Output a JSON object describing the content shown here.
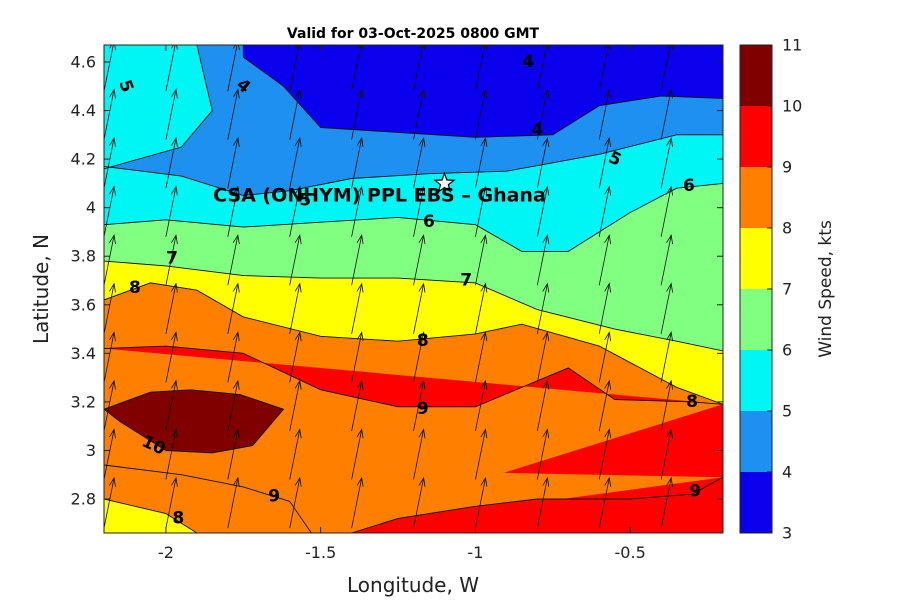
{
  "chart_data": {
    "type": "contour",
    "title": "Valid for 03-Oct-2025 0800 GMT",
    "xlabel": "Longitude, W",
    "ylabel": "Latitude, N",
    "xlim": [
      -2.2,
      -0.2
    ],
    "ylim": [
      2.66,
      4.67
    ],
    "x_ticks": [
      -2,
      -1.5,
      -1,
      -0.5
    ],
    "x_tick_labels": [
      "-2",
      "-1.5",
      "-1",
      "-0.5"
    ],
    "y_ticks": [
      2.8,
      3,
      3.2,
      3.4,
      3.6,
      3.8,
      4,
      4.2,
      4.4,
      4.6
    ],
    "y_tick_labels": [
      "2.8",
      "3",
      "3.2",
      "3.4",
      "3.6",
      "3.8",
      "4",
      "4.2",
      "4.4",
      "4.6"
    ],
    "variable": "Wind Speed, kts",
    "colorbar": {
      "label": "Wind Speed, kts",
      "levels": [
        3,
        4,
        5,
        6,
        7,
        8,
        9,
        10,
        11
      ],
      "tick_labels": [
        "3",
        "4",
        "5",
        "6",
        "7",
        "8",
        "9",
        "10",
        "11"
      ],
      "colors": [
        "#0a00ee",
        "#1e90f0",
        "#00f5f5",
        "#80ff80",
        "#ffff00",
        "#ff8000",
        "#ff0000",
        "#800000"
      ]
    },
    "contour_lines": [
      {
        "level": 4,
        "points": [
          [
            -1.75,
            4.67
          ],
          [
            -1.75,
            4.62
          ],
          [
            -1.62,
            4.5
          ],
          [
            -1.5,
            4.33
          ],
          [
            -1.25,
            4.31
          ],
          [
            -1.0,
            4.29
          ],
          [
            -0.75,
            4.3
          ],
          [
            -0.6,
            4.42
          ],
          [
            -0.4,
            4.46
          ],
          [
            -0.2,
            4.45
          ]
        ]
      },
      {
        "level": 5,
        "points": [
          [
            -2.2,
            4.16
          ],
          [
            -1.95,
            4.25
          ],
          [
            -1.85,
            4.4
          ],
          [
            -1.9,
            4.67
          ]
        ]
      },
      {
        "level": 5,
        "points": [
          [
            -2.2,
            4.17
          ],
          [
            -1.95,
            4.13
          ],
          [
            -1.75,
            4.05
          ],
          [
            -1.6,
            4.07
          ],
          [
            -1.4,
            4.12
          ],
          [
            -1.15,
            4.14
          ],
          [
            -0.9,
            4.15
          ],
          [
            -0.6,
            4.22
          ],
          [
            -0.35,
            4.3
          ],
          [
            -0.2,
            4.3
          ]
        ]
      },
      {
        "level": 6,
        "points": [
          [
            -2.2,
            3.93
          ],
          [
            -2.0,
            3.95
          ],
          [
            -1.75,
            3.92
          ],
          [
            -1.5,
            3.94
          ],
          [
            -1.25,
            3.96
          ],
          [
            -1.0,
            3.93
          ],
          [
            -0.85,
            3.82
          ],
          [
            -0.7,
            3.82
          ],
          [
            -0.5,
            3.98
          ],
          [
            -0.35,
            4.08
          ],
          [
            -0.2,
            4.1
          ]
        ]
      },
      {
        "level": 7,
        "points": [
          [
            -2.2,
            3.78
          ],
          [
            -2.0,
            3.76
          ],
          [
            -1.75,
            3.72
          ],
          [
            -1.5,
            3.71
          ],
          [
            -1.25,
            3.71
          ],
          [
            -1.0,
            3.69
          ],
          [
            -0.8,
            3.58
          ],
          [
            -0.55,
            3.5
          ],
          [
            -0.35,
            3.45
          ],
          [
            -0.2,
            3.41
          ]
        ]
      },
      {
        "level": 8,
        "points": [
          [
            -2.2,
            3.62
          ],
          [
            -2.05,
            3.69
          ],
          [
            -1.9,
            3.66
          ],
          [
            -1.75,
            3.55
          ],
          [
            -1.5,
            3.47
          ],
          [
            -1.25,
            3.45
          ],
          [
            -1.0,
            3.48
          ],
          [
            -0.85,
            3.52
          ],
          [
            -0.6,
            3.43
          ],
          [
            -0.35,
            3.26
          ],
          [
            -0.2,
            3.19
          ]
        ]
      },
      {
        "level": 9,
        "points": [
          [
            -2.2,
            3.42
          ],
          [
            -2.0,
            3.43
          ],
          [
            -1.75,
            3.4
          ],
          [
            -1.5,
            3.25
          ],
          [
            -1.25,
            3.18
          ],
          [
            -1.0,
            3.18
          ],
          [
            -0.85,
            3.26
          ],
          [
            -0.7,
            3.34
          ],
          [
            -0.55,
            3.21
          ],
          [
            -0.3,
            3.2
          ],
          [
            -0.2,
            3.19
          ]
        ]
      },
      {
        "level": 9,
        "points": [
          [
            -2.2,
            2.94
          ],
          [
            -1.95,
            2.9
          ],
          [
            -1.75,
            2.85
          ],
          [
            -1.6,
            2.79
          ],
          [
            -1.53,
            2.66
          ]
        ]
      },
      {
        "level": 9,
        "points": [
          [
            -1.4,
            2.66
          ],
          [
            -1.25,
            2.72
          ],
          [
            -1.0,
            2.77
          ],
          [
            -0.8,
            2.8
          ],
          [
            -0.5,
            2.8
          ],
          [
            -0.3,
            2.82
          ],
          [
            -0.2,
            2.89
          ]
        ]
      },
      {
        "level": 8,
        "points": [
          [
            -2.2,
            2.8
          ],
          [
            -2.0,
            2.74
          ],
          [
            -1.9,
            2.66
          ]
        ]
      },
      {
        "level": 10,
        "points": [
          [
            -2.2,
            3.17
          ],
          [
            -2.05,
            3.24
          ],
          [
            -1.92,
            3.25
          ],
          [
            -1.76,
            3.23
          ],
          [
            -1.62,
            3.17
          ],
          [
            -1.72,
            3.02
          ],
          [
            -1.85,
            2.99
          ],
          [
            -2.0,
            3.0
          ],
          [
            -2.15,
            3.12
          ],
          [
            -2.2,
            3.17
          ]
        ]
      }
    ],
    "contour_labels": [
      {
        "text": "5",
        "x": -2.13,
        "y": 4.5,
        "angle": 70
      },
      {
        "text": "4",
        "x": -1.75,
        "y": 4.5,
        "angle": 40
      },
      {
        "text": "4",
        "x": -0.83,
        "y": 4.6,
        "angle": 0
      },
      {
        "text": "4",
        "x": -0.8,
        "y": 4.32,
        "angle": 0
      },
      {
        "text": "5",
        "x": -0.55,
        "y": 4.2,
        "angle": 25
      },
      {
        "text": "5",
        "x": -1.55,
        "y": 4.03,
        "angle": 0
      },
      {
        "text": "6",
        "x": -0.31,
        "y": 4.09,
        "angle": 0
      },
      {
        "text": "6",
        "x": -1.15,
        "y": 3.94,
        "angle": 0
      },
      {
        "text": "7",
        "x": -1.98,
        "y": 3.79,
        "angle": 0
      },
      {
        "text": "7",
        "x": -1.03,
        "y": 3.7,
        "angle": 0
      },
      {
        "text": "8",
        "x": -2.1,
        "y": 3.67,
        "angle": 0
      },
      {
        "text": "8",
        "x": -1.17,
        "y": 3.45,
        "angle": 0
      },
      {
        "text": "8",
        "x": -0.3,
        "y": 3.2,
        "angle": 0
      },
      {
        "text": "9",
        "x": -1.17,
        "y": 3.17,
        "angle": 0
      },
      {
        "text": "9",
        "x": -1.65,
        "y": 2.81,
        "angle": 0
      },
      {
        "text": "9",
        "x": -0.29,
        "y": 2.83,
        "angle": 0
      },
      {
        "text": "10",
        "x": -2.04,
        "y": 3.02,
        "angle": 25
      },
      {
        "text": "8",
        "x": -1.96,
        "y": 2.72,
        "angle": 0
      }
    ],
    "site": {
      "name": "CSA (ONHYM) PPL EBS  – Ghana",
      "x": -1.1,
      "y": 4.1,
      "marker": "star-icon"
    },
    "wind_vectors": {
      "x_start": -2.2,
      "x_step": 0.2,
      "y_start": 2.68,
      "y_step": 0.2,
      "u": 0.085,
      "v": 0.19
    }
  }
}
